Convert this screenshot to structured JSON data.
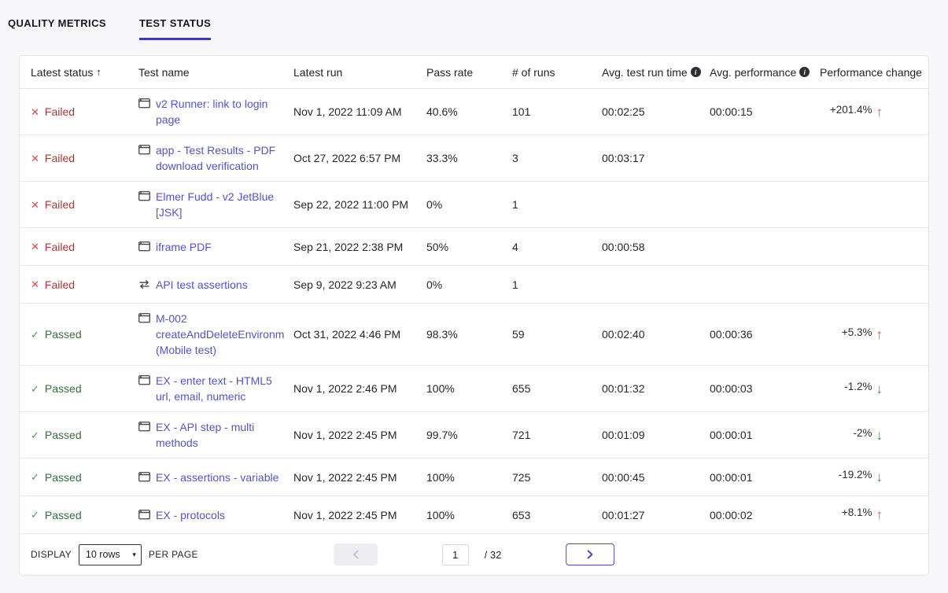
{
  "tabs": [
    {
      "label": "QUALITY METRICS",
      "active": false
    },
    {
      "label": "TEST STATUS",
      "active": true
    }
  ],
  "icons": {
    "failed": "✕",
    "passed": "✓",
    "up_arrow": "↑",
    "down_arrow": "↓",
    "sort_asc": "↑",
    "info": "i",
    "select_caret": "▾"
  },
  "colors": {
    "accent_indigo": "#3c3cae",
    "link": "#5254c5",
    "failed_icon": "#e5484d",
    "failed_text": "#a13c3a",
    "passed_icon": "#46a04a",
    "passed_text": "#35703a",
    "perf_up": "#e5484d",
    "perf_down": "#3d8c42"
  },
  "table": {
    "columns": {
      "status": "Latest status",
      "test_name": "Test name",
      "latest_run": "Latest run",
      "pass_rate": "Pass rate",
      "runs": "# of runs",
      "avg_run_time": "Avg. test run time",
      "avg_performance": "Avg. performance",
      "perf_change": "Performance change"
    },
    "rows": [
      {
        "status": "Failed",
        "status_kind": "failed",
        "icon": "browser",
        "name": "v2 Runner: link to login page",
        "latest_run": "Nov 1, 2022 11:09 AM",
        "pass_rate": "40.6%",
        "runs": "101",
        "avg_run_time": "00:02:25",
        "avg_performance": "00:00:15",
        "perf_change": "+201.4%",
        "perf_dir": "up"
      },
      {
        "status": "Failed",
        "status_kind": "failed",
        "icon": "browser",
        "name": "app - Test Results - PDF download verification",
        "latest_run": "Oct 27, 2022 6:57 PM",
        "pass_rate": "33.3%",
        "runs": "3",
        "avg_run_time": "00:03:17",
        "avg_performance": "",
        "perf_change": "",
        "perf_dir": ""
      },
      {
        "status": "Failed",
        "status_kind": "failed",
        "icon": "browser",
        "name": "Elmer Fudd - v2 JetBlue [JSK]",
        "latest_run": "Sep 22, 2022 11:00 PM",
        "pass_rate": "0%",
        "runs": "1",
        "avg_run_time": "",
        "avg_performance": "",
        "perf_change": "",
        "perf_dir": ""
      },
      {
        "status": "Failed",
        "status_kind": "failed",
        "icon": "browser",
        "name": "iframe PDF",
        "latest_run": "Sep 21, 2022 2:38 PM",
        "pass_rate": "50%",
        "runs": "4",
        "avg_run_time": "00:00:58",
        "avg_performance": "",
        "perf_change": "",
        "perf_dir": ""
      },
      {
        "status": "Failed",
        "status_kind": "failed",
        "icon": "api",
        "name": "API test assertions",
        "latest_run": "Sep 9, 2022 9:23 AM",
        "pass_rate": "0%",
        "runs": "1",
        "avg_run_time": "",
        "avg_performance": "",
        "perf_change": "",
        "perf_dir": ""
      },
      {
        "status": "Passed",
        "status_kind": "passed",
        "icon": "browser",
        "name": "M-002 createAndDeleteEnvironm (Mobile test)",
        "latest_run": "Oct 31, 2022 4:46 PM",
        "pass_rate": "98.3%",
        "runs": "59",
        "avg_run_time": "00:02:40",
        "avg_performance": "00:00:36",
        "perf_change": "+5.3%",
        "perf_dir": "up"
      },
      {
        "status": "Passed",
        "status_kind": "passed",
        "icon": "browser",
        "name": "EX - enter text - HTML5 url, email, numeric",
        "latest_run": "Nov 1, 2022 2:46 PM",
        "pass_rate": "100%",
        "runs": "655",
        "avg_run_time": "00:01:32",
        "avg_performance": "00:00:03",
        "perf_change": "-1.2%",
        "perf_dir": "down"
      },
      {
        "status": "Passed",
        "status_kind": "passed",
        "icon": "browser",
        "name": "EX - API step - multi methods",
        "latest_run": "Nov 1, 2022 2:45 PM",
        "pass_rate": "99.7%",
        "runs": "721",
        "avg_run_time": "00:01:09",
        "avg_performance": "00:00:01",
        "perf_change": "-2%",
        "perf_dir": "down"
      },
      {
        "status": "Passed",
        "status_kind": "passed",
        "icon": "browser",
        "name": "EX - assertions - variable",
        "latest_run": "Nov 1, 2022 2:45 PM",
        "pass_rate": "100%",
        "runs": "725",
        "avg_run_time": "00:00:45",
        "avg_performance": "00:00:01",
        "perf_change": "-19.2%",
        "perf_dir": "down"
      },
      {
        "status": "Passed",
        "status_kind": "passed",
        "icon": "browser",
        "name": "EX - protocols",
        "latest_run": "Nov 1, 2022 2:45 PM",
        "pass_rate": "100%",
        "runs": "653",
        "avg_run_time": "00:01:27",
        "avg_performance": "00:00:02",
        "perf_change": "+8.1%",
        "perf_dir": "up"
      }
    ]
  },
  "footer": {
    "display_label": "DISPLAY",
    "rows_select_value": "10 rows",
    "per_page_label": "PER PAGE",
    "page_value": "1",
    "page_total": "/ 32"
  }
}
